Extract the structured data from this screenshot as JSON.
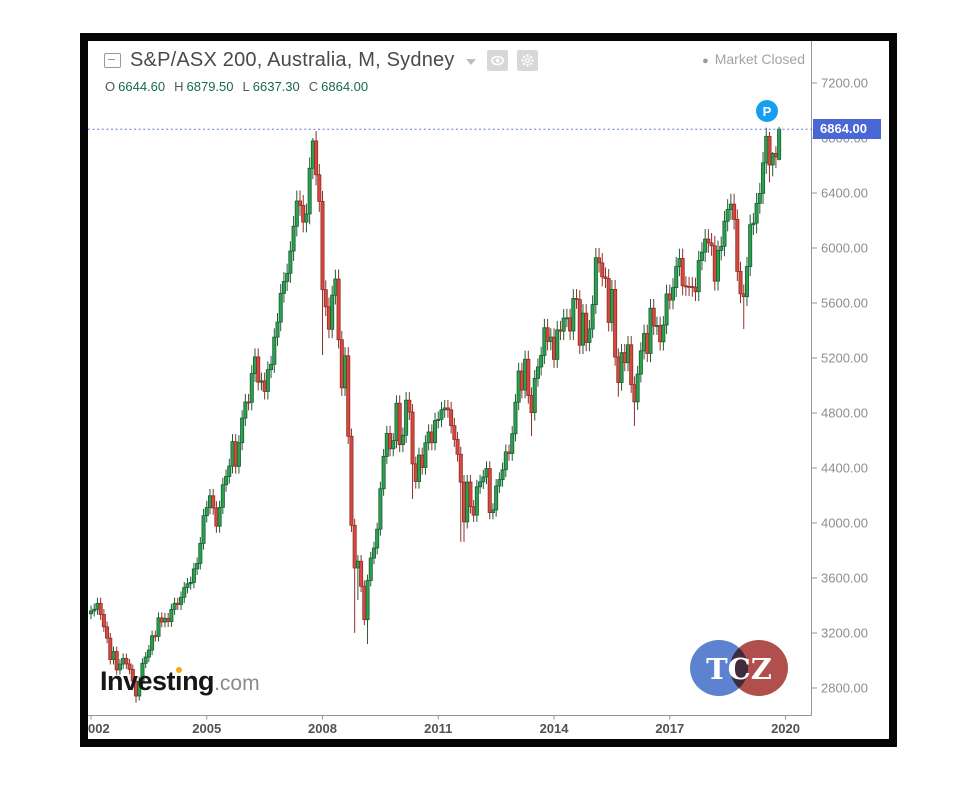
{
  "header": {
    "title": "S&P/ASX 200, Australia, M, Sydney",
    "market_status": "Market Closed",
    "market_status_dot": "●",
    "ohlc": {
      "o_label": "O",
      "o": "6644.60",
      "h_label": "H",
      "h": "6879.50",
      "l_label": "L",
      "l": "6637.30",
      "c_label": "C",
      "c": "6864.00"
    }
  },
  "price_tag": "6864.00",
  "p_badge": "P",
  "watermarks": {
    "investing_part1": "Invest",
    "investing_dotless_i": "ı",
    "investing_part2": "ng",
    "investing_suffix": ".com",
    "tcz": "TCZ"
  },
  "colors": {
    "up_fill": "#2aa14d",
    "up_border": "#1c5c36",
    "down_fill": "#d9483e",
    "down_border": "#8e2e28",
    "accent_blue": "#4a67d6",
    "badge_blue": "#14a0ee",
    "dotted_line": "#5d79e6"
  },
  "chart_data": {
    "type": "candlestick",
    "symbol": "S&P/ASX 200",
    "interval": "M",
    "start": "2002-01",
    "last_close": 6864.0,
    "y_ticks": [
      "7200.00",
      "6800.00",
      "6400.00",
      "6000.00",
      "5600.00",
      "5200.00",
      "4800.00",
      "4400.00",
      "4000.00",
      "3600.00",
      "3200.00",
      "2800.00"
    ],
    "x_ticks": [
      [
        "002",
        0
      ],
      [
        "2005",
        36
      ],
      [
        "2008",
        72
      ],
      [
        "2011",
        108
      ],
      [
        "2014",
        144
      ],
      [
        "2017",
        180
      ],
      [
        "2020",
        216
      ]
    ],
    "ylim": [
      2600,
      7480
    ],
    "grid": false,
    "candles": [
      [
        3340,
        3400,
        3300,
        3360
      ],
      [
        3360,
        3414,
        3320,
        3373
      ],
      [
        3373,
        3456,
        3333,
        3415
      ],
      [
        3415,
        3456,
        3295,
        3335
      ],
      [
        3335,
        3375,
        3206,
        3245
      ],
      [
        3245,
        3284,
        3125,
        3163
      ],
      [
        3163,
        3201,
        2971,
        3007
      ],
      [
        3007,
        3102,
        2971,
        3065
      ],
      [
        3065,
        3102,
        2897,
        2932
      ],
      [
        2932,
        3010,
        2897,
        2974
      ],
      [
        2974,
        3051,
        2938,
        3015
      ],
      [
        3015,
        3051,
        2939,
        2975
      ],
      [
        2975,
        3011,
        2900,
        2935
      ],
      [
        2935,
        2970,
        2816,
        2850
      ],
      [
        2850,
        2884,
        2693,
        2742
      ],
      [
        2742,
        2882,
        2709,
        2848
      ],
      [
        2848,
        3016,
        2814,
        2980
      ],
      [
        2980,
        3061,
        2944,
        3025
      ],
      [
        3025,
        3113,
        2989,
        3076
      ],
      [
        3076,
        3218,
        3039,
        3180
      ],
      [
        3180,
        3218,
        3138,
        3176
      ],
      [
        3176,
        3350,
        3138,
        3310
      ],
      [
        3310,
        3350,
        3241,
        3280
      ],
      [
        3280,
        3346,
        3241,
        3306
      ],
      [
        3306,
        3346,
        3244,
        3283
      ],
      [
        3283,
        3412,
        3244,
        3372
      ],
      [
        3372,
        3457,
        3332,
        3416
      ],
      [
        3416,
        3457,
        3367,
        3408
      ],
      [
        3408,
        3502,
        3367,
        3460
      ],
      [
        3460,
        3572,
        3419,
        3530
      ],
      [
        3530,
        3601,
        3488,
        3558
      ],
      [
        3558,
        3611,
        3515,
        3568
      ],
      [
        3568,
        3710,
        3525,
        3666
      ],
      [
        3666,
        3750,
        3622,
        3706
      ],
      [
        3706,
        3898,
        3662,
        3852
      ],
      [
        3852,
        4102,
        3806,
        4053
      ],
      [
        4053,
        4161,
        4004,
        4112
      ],
      [
        4112,
        4248,
        4063,
        4198
      ],
      [
        4198,
        4248,
        4060,
        4109
      ],
      [
        4109,
        4158,
        3929,
        3977
      ],
      [
        3977,
        4163,
        3929,
        4114
      ],
      [
        4114,
        4329,
        4065,
        4278
      ],
      [
        4278,
        4390,
        4227,
        4338
      ],
      [
        4338,
        4467,
        4286,
        4414
      ],
      [
        4414,
        4647,
        4361,
        4592
      ],
      [
        4592,
        4647,
        4359,
        4412
      ],
      [
        4412,
        4639,
        4359,
        4584
      ],
      [
        4584,
        4820,
        4529,
        4763
      ],
      [
        4763,
        4939,
        4706,
        4880
      ],
      [
        4880,
        4939,
        4819,
        4878
      ],
      [
        4878,
        5148,
        4819,
        5087
      ],
      [
        5087,
        5270,
        5026,
        5208
      ],
      [
        5208,
        5270,
        4964,
        5024
      ],
      [
        5024,
        5094,
        4964,
        5034
      ],
      [
        5034,
        5094,
        4898,
        4957
      ],
      [
        4957,
        5176,
        4898,
        5115
      ],
      [
        5115,
        5216,
        5054,
        5154
      ],
      [
        5154,
        5416,
        5092,
        5352
      ],
      [
        5352,
        5527,
        5288,
        5461
      ],
      [
        5461,
        5738,
        5395,
        5670
      ],
      [
        5670,
        5826,
        5602,
        5757
      ],
      [
        5757,
        5886,
        5688,
        5816
      ],
      [
        5816,
        6050,
        5746,
        5978
      ],
      [
        5978,
        6232,
        5906,
        6158
      ],
      [
        6158,
        6418,
        6084,
        6342
      ],
      [
        6342,
        6418,
        6234,
        6310
      ],
      [
        6310,
        6386,
        6114,
        6188
      ],
      [
        6188,
        6323,
        6114,
        6248
      ],
      [
        6248,
        6659,
        6173,
        6580
      ],
      [
        6580,
        6800,
        6501,
        6779
      ],
      [
        6779,
        6851,
        6455,
        6533
      ],
      [
        6533,
        6611,
        6263,
        6339
      ],
      [
        6339,
        6415,
        5222,
        5697
      ],
      [
        5697,
        5765,
        5505,
        5572
      ],
      [
        5572,
        5639,
        5344,
        5409
      ],
      [
        5409,
        5725,
        5344,
        5657
      ],
      [
        5657,
        5843,
        5589,
        5774
      ],
      [
        5774,
        5843,
        5269,
        5333
      ],
      [
        5333,
        5397,
        4923,
        4983
      ],
      [
        4983,
        5279,
        4923,
        5216
      ],
      [
        5216,
        5279,
        4575,
        4631
      ],
      [
        4631,
        4687,
        3935,
        3983
      ],
      [
        3983,
        4031,
        3201,
        3673
      ],
      [
        3673,
        3767,
        3440,
        3722
      ],
      [
        3722,
        3767,
        3498,
        3540
      ],
      [
        3540,
        3582,
        3257,
        3297
      ],
      [
        3297,
        3625,
        3120,
        3582
      ],
      [
        3582,
        3790,
        3539,
        3745
      ],
      [
        3745,
        3864,
        3700,
        3818
      ],
      [
        3818,
        4002,
        3772,
        3955
      ],
      [
        3955,
        4300,
        3908,
        4249
      ],
      [
        4249,
        4538,
        4198,
        4484
      ],
      [
        4484,
        4707,
        4430,
        4651
      ],
      [
        4651,
        4707,
        4485,
        4540
      ],
      [
        4540,
        4654,
        4485,
        4599
      ],
      [
        4599,
        4929,
        4544,
        4871
      ],
      [
        4871,
        4929,
        4515,
        4570
      ],
      [
        4570,
        4694,
        4515,
        4638
      ],
      [
        4638,
        4952,
        4582,
        4893
      ],
      [
        4893,
        4952,
        4749,
        4807
      ],
      [
        4807,
        4865,
        4175,
        4430
      ],
      [
        4430,
        4483,
        4250,
        4302
      ],
      [
        4302,
        4548,
        4250,
        4494
      ],
      [
        4494,
        4548,
        4351,
        4404
      ],
      [
        4404,
        4638,
        4351,
        4583
      ],
      [
        4583,
        4718,
        4528,
        4662
      ],
      [
        4662,
        4718,
        4529,
        4584
      ],
      [
        4584,
        4802,
        4529,
        4745
      ],
      [
        4745,
        4811,
        4688,
        4754
      ],
      [
        4754,
        4881,
        4697,
        4823
      ],
      [
        4823,
        4895,
        4765,
        4837
      ],
      [
        4837,
        4895,
        4765,
        4823
      ],
      [
        4823,
        4881,
        4651,
        4708
      ],
      [
        4708,
        4764,
        4553,
        4608
      ],
      [
        4608,
        4663,
        4446,
        4500
      ],
      [
        4500,
        4554,
        3863,
        4297
      ],
      [
        4297,
        4349,
        3863,
        4008
      ],
      [
        4008,
        4350,
        3960,
        4298
      ],
      [
        4298,
        4350,
        4070,
        4119
      ],
      [
        4119,
        4168,
        4008,
        4057
      ],
      [
        4057,
        4314,
        4008,
        4263
      ],
      [
        4263,
        4351,
        4212,
        4299
      ],
      [
        4299,
        4387,
        4247,
        4335
      ],
      [
        4335,
        4449,
        4283,
        4396
      ],
      [
        4396,
        4449,
        4027,
        4076
      ],
      [
        4076,
        4144,
        4027,
        4095
      ],
      [
        4095,
        4320,
        4046,
        4269
      ],
      [
        4269,
        4368,
        4218,
        4316
      ],
      [
        4316,
        4440,
        4264,
        4387
      ],
      [
        4387,
        4571,
        4334,
        4517
      ],
      [
        4517,
        4571,
        4452,
        4506
      ],
      [
        4506,
        4705,
        4452,
        4649
      ],
      [
        4649,
        4938,
        4593,
        4879
      ],
      [
        4879,
        5166,
        4820,
        5105
      ],
      [
        5105,
        5166,
        4907,
        4967
      ],
      [
        4967,
        5253,
        4907,
        5191
      ],
      [
        5191,
        5253,
        4868,
        4927
      ],
      [
        4927,
        4986,
        4632,
        4803
      ],
      [
        4803,
        5113,
        4745,
        5052
      ],
      [
        5052,
        5197,
        4991,
        5135
      ],
      [
        5135,
        5282,
        5073,
        5219
      ],
      [
        5219,
        5485,
        5156,
        5420
      ],
      [
        5420,
        5485,
        5256,
        5320
      ],
      [
        5320,
        5416,
        5256,
        5352
      ],
      [
        5352,
        5416,
        5128,
        5190
      ],
      [
        5190,
        5470,
        5128,
        5405
      ],
      [
        5405,
        5470,
        5330,
        5395
      ],
      [
        5395,
        5556,
        5330,
        5490
      ],
      [
        5490,
        5558,
        5424,
        5492
      ],
      [
        5492,
        5558,
        5331,
        5396
      ],
      [
        5396,
        5701,
        5331,
        5633
      ],
      [
        5633,
        5701,
        5558,
        5625
      ],
      [
        5625,
        5693,
        5229,
        5293
      ],
      [
        5293,
        5592,
        5229,
        5526
      ],
      [
        5526,
        5592,
        5249,
        5313
      ],
      [
        5313,
        5476,
        5249,
        5411
      ],
      [
        5411,
        5655,
        5346,
        5588
      ],
      [
        5588,
        6000,
        5521,
        5929
      ],
      [
        5929,
        6000,
        5821,
        5892
      ],
      [
        5892,
        5963,
        5721,
        5790
      ],
      [
        5790,
        5859,
        5709,
        5778
      ],
      [
        5778,
        5847,
        5393,
        5459
      ],
      [
        5459,
        5767,
        5393,
        5699
      ],
      [
        5699,
        5767,
        5144,
        5207
      ],
      [
        5207,
        5270,
        4918,
        5022
      ],
      [
        5022,
        5302,
        4962,
        5239
      ],
      [
        5239,
        5302,
        5104,
        5166
      ],
      [
        5166,
        5360,
        5104,
        5296
      ],
      [
        5296,
        5360,
        4946,
        5006
      ],
      [
        5006,
        5066,
        4706,
        4881
      ],
      [
        4881,
        5144,
        4823,
        5083
      ],
      [
        5083,
        5315,
        5022,
        5252
      ],
      [
        5252,
        5443,
        5189,
        5378
      ],
      [
        5378,
        5443,
        5170,
        5233
      ],
      [
        5233,
        5629,
        5170,
        5562
      ],
      [
        5562,
        5629,
        5368,
        5433
      ],
      [
        5433,
        5501,
        5368,
        5436
      ],
      [
        5436,
        5501,
        5254,
        5318
      ],
      [
        5318,
        5505,
        5254,
        5440
      ],
      [
        5440,
        5734,
        5375,
        5666
      ],
      [
        5666,
        5734,
        5554,
        5621
      ],
      [
        5621,
        5781,
        5554,
        5712
      ],
      [
        5712,
        5935,
        5643,
        5865
      ],
      [
        5865,
        5995,
        5795,
        5924
      ],
      [
        5924,
        5995,
        5656,
        5725
      ],
      [
        5725,
        5794,
        5652,
        5721
      ],
      [
        5721,
        5790,
        5651,
        5720
      ],
      [
        5720,
        5789,
        5646,
        5715
      ],
      [
        5715,
        5784,
        5614,
        5682
      ],
      [
        5682,
        5980,
        5614,
        5909
      ],
      [
        5909,
        6042,
        5838,
        5970
      ],
      [
        5970,
        6138,
        5898,
        6065
      ],
      [
        6065,
        6138,
        5965,
        6037
      ],
      [
        6037,
        6109,
        5944,
        6016
      ],
      [
        6016,
        6088,
        5690,
        5759
      ],
      [
        5759,
        6054,
        5690,
        5982
      ],
      [
        5982,
        6084,
        5910,
        6012
      ],
      [
        6012,
        6269,
        5940,
        6195
      ],
      [
        6195,
        6355,
        6121,
        6280
      ],
      [
        6280,
        6395,
        6205,
        6319
      ],
      [
        6319,
        6395,
        6134,
        6208
      ],
      [
        6208,
        6282,
        5760,
        5830
      ],
      [
        5830,
        5900,
        5599,
        5667
      ],
      [
        5667,
        5735,
        5410,
        5646
      ],
      [
        5646,
        5935,
        5578,
        5865
      ],
      [
        5865,
        6243,
        5795,
        6169
      ],
      [
        6169,
        6255,
        6095,
        6181
      ],
      [
        6181,
        6401,
        6107,
        6325
      ],
      [
        6325,
        6474,
        6249,
        6397
      ],
      [
        6397,
        6698,
        6320,
        6619
      ],
      [
        6619,
        6875,
        6539,
        6812
      ],
      [
        6812,
        6845,
        6478,
        6604
      ],
      [
        6604,
        6698,
        6522,
        6688
      ],
      [
        6688,
        6740,
        6582,
        6663
      ],
      [
        6644.6,
        6879.5,
        6637.3,
        6864.0
      ]
    ]
  }
}
